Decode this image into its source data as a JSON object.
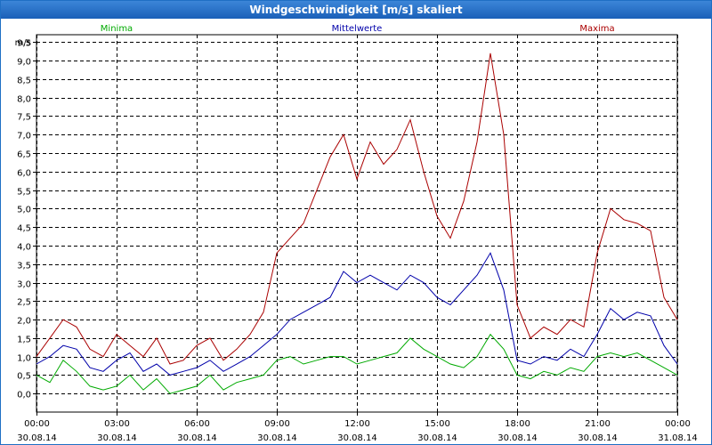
{
  "window": {
    "title": "Windgeschwindigkeit [m/s] skaliert"
  },
  "colors": {
    "min": "#00aa00",
    "mean": "#0000aa",
    "max": "#aa0000",
    "grid": "#000000"
  },
  "chart_data": {
    "type": "line",
    "title": "Windgeschwindigkeit [m/s] skaliert",
    "ylabel": "m/s",
    "ylim": [
      -0.5,
      9.7
    ],
    "yticks": [
      0.0,
      0.5,
      1.0,
      1.5,
      2.0,
      2.5,
      3.0,
      3.5,
      4.0,
      4.5,
      5.0,
      5.5,
      6.0,
      6.5,
      7.0,
      7.5,
      8.0,
      8.5,
      9.0,
      9.5
    ],
    "ytick_labels": [
      "0,0",
      "0,5",
      "1,0",
      "1,5",
      "2,0",
      "2,5",
      "3,0",
      "3,5",
      "4,0",
      "4,5",
      "5,0",
      "5,5",
      "6,0",
      "6,5",
      "7,0",
      "7,5",
      "8,0",
      "8,5",
      "9,0",
      "9,5"
    ],
    "xlim_hours": [
      0,
      24
    ],
    "xticks_hours": [
      0,
      3,
      6,
      9,
      12,
      15,
      18,
      21,
      24
    ],
    "xtick_times": [
      "00:00",
      "03:00",
      "06:00",
      "09:00",
      "12:00",
      "15:00",
      "18:00",
      "21:00",
      "00:00"
    ],
    "xtick_dates": [
      "30.08.14",
      "30.08.14",
      "30.08.14",
      "30.08.14",
      "30.08.14",
      "30.08.14",
      "30.08.14",
      "30.08.14",
      "31.08.14"
    ],
    "series": [
      {
        "name": "Minima",
        "key": "min",
        "x": [
          0,
          0.5,
          1,
          1.5,
          2,
          2.5,
          3,
          3.5,
          4,
          4.5,
          5,
          5.5,
          6,
          6.5,
          7,
          7.5,
          8,
          8.5,
          9,
          9.5,
          10,
          10.5,
          11,
          11.5,
          12,
          12.5,
          13,
          13.5,
          14,
          14.5,
          15,
          15.5,
          16,
          16.5,
          17,
          17.5,
          18,
          18.5,
          19,
          19.5,
          20,
          20.5,
          21,
          21.5,
          22,
          22.5,
          23,
          23.5,
          24
        ],
        "values": [
          0.5,
          0.3,
          0.9,
          0.6,
          0.2,
          0.1,
          0.2,
          0.5,
          0.1,
          0.4,
          0.0,
          0.1,
          0.2,
          0.5,
          0.1,
          0.3,
          0.4,
          0.5,
          0.9,
          1.0,
          0.8,
          0.9,
          1.0,
          1.0,
          0.8,
          0.9,
          1.0,
          1.1,
          1.5,
          1.2,
          1.0,
          0.8,
          0.7,
          1.0,
          1.6,
          1.2,
          0.5,
          0.4,
          0.6,
          0.5,
          0.7,
          0.6,
          1.0,
          1.1,
          1.0,
          1.1,
          0.9,
          0.7,
          0.5
        ]
      },
      {
        "name": "Mittelwerte",
        "key": "mean",
        "x": [
          0,
          0.5,
          1,
          1.5,
          2,
          2.5,
          3,
          3.5,
          4,
          4.5,
          5,
          5.5,
          6,
          6.5,
          7,
          7.5,
          8,
          8.5,
          9,
          9.5,
          10,
          10.5,
          11,
          11.5,
          12,
          12.5,
          13,
          13.5,
          14,
          14.5,
          15,
          15.5,
          16,
          16.5,
          17,
          17.5,
          18,
          18.5,
          19,
          19.5,
          20,
          20.5,
          21,
          21.5,
          22,
          22.5,
          23,
          23.5,
          24
        ],
        "values": [
          0.8,
          1.0,
          1.3,
          1.2,
          0.7,
          0.6,
          0.9,
          1.1,
          0.6,
          0.8,
          0.5,
          0.6,
          0.7,
          0.9,
          0.6,
          0.8,
          1.0,
          1.3,
          1.6,
          2.0,
          2.2,
          2.4,
          2.6,
          3.3,
          3.0,
          3.2,
          3.0,
          2.8,
          3.2,
          3.0,
          2.6,
          2.4,
          2.8,
          3.2,
          3.8,
          2.8,
          0.9,
          0.8,
          1.0,
          0.9,
          1.2,
          1.0,
          1.6,
          2.3,
          2.0,
          2.2,
          2.1,
          1.3,
          0.8
        ]
      },
      {
        "name": "Maxima",
        "key": "max",
        "x": [
          0,
          0.5,
          1,
          1.5,
          2,
          2.5,
          3,
          3.5,
          4,
          4.5,
          5,
          5.5,
          6,
          6.5,
          7,
          7.5,
          8,
          8.5,
          9,
          9.5,
          10,
          10.5,
          11,
          11.5,
          12,
          12.5,
          13,
          13.5,
          14,
          14.5,
          15,
          15.5,
          16,
          16.5,
          17,
          17.5,
          18,
          18.5,
          19,
          19.5,
          20,
          20.5,
          21,
          21.5,
          22,
          22.5,
          23,
          23.5,
          24
        ],
        "values": [
          1.0,
          1.5,
          2.0,
          1.8,
          1.2,
          1.0,
          1.6,
          1.3,
          1.0,
          1.5,
          0.8,
          0.9,
          1.3,
          1.5,
          0.9,
          1.2,
          1.6,
          2.2,
          3.8,
          4.2,
          4.6,
          5.5,
          6.4,
          7.0,
          5.8,
          6.8,
          6.2,
          6.6,
          7.4,
          6.0,
          4.8,
          4.2,
          5.2,
          6.8,
          9.2,
          7.0,
          2.4,
          1.5,
          1.8,
          1.6,
          2.0,
          1.8,
          3.8,
          5.0,
          4.7,
          4.6,
          4.4,
          2.6,
          2.0
        ]
      }
    ]
  }
}
